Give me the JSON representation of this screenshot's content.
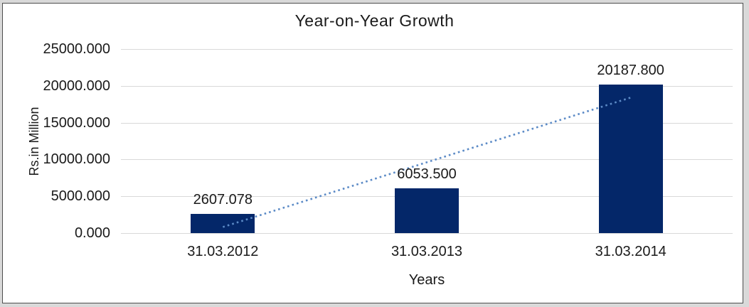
{
  "window": {
    "outer_background": "#d9d9d9",
    "frame_border_color": "#4d4d4d",
    "chart_background": "#ffffff"
  },
  "chart_data": {
    "type": "bar",
    "title": "Year-on-Year Growth",
    "xlabel": "Years",
    "ylabel": "Rs.in Million",
    "categories": [
      "31.03.2012",
      "31.03.2013",
      "31.03.2014"
    ],
    "values": [
      2607.078,
      6053.5,
      20187.8
    ],
    "data_labels": [
      "2607.078",
      "6053.500",
      "20187.800"
    ],
    "y_ticks": [
      {
        "label": "25000.000",
        "value": 25000
      },
      {
        "label": "20000.000",
        "value": 20000
      },
      {
        "label": "15000.000",
        "value": 15000
      },
      {
        "label": "10000.000",
        "value": 10000
      },
      {
        "label": "5000.000",
        "value": 5000
      },
      {
        "label": "0.000",
        "value": 0
      }
    ],
    "ylim": [
      0,
      25000
    ],
    "grid": "horizontal-only",
    "legend": "none",
    "colors": {
      "bar": "#042769",
      "trendline": "#5b8ac6",
      "gridline": "#d9d9d9",
      "text": "#1a1a1a"
    },
    "trendline": {
      "type": "linear",
      "style": "dotted"
    }
  }
}
